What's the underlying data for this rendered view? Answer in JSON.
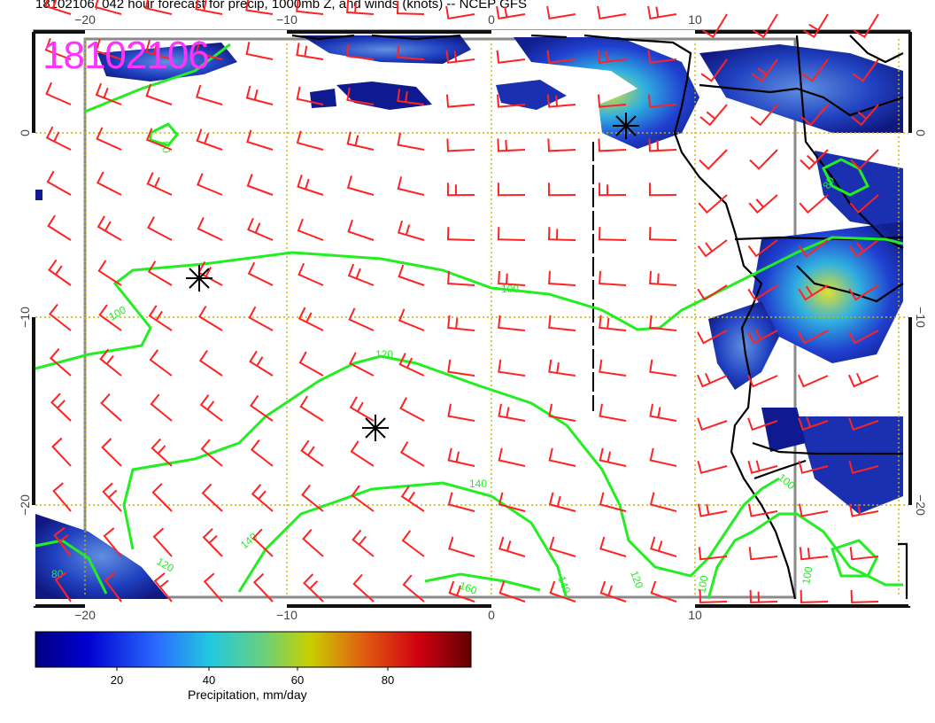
{
  "title": "18102106, 042 hour forecast for precip, 1000mb Z, and winds (knots) -- NCEP GFS",
  "stamp": "18102106",
  "axes": {
    "lon_ticks_top": [
      "−20",
      "−10",
      "0",
      "10"
    ],
    "lon_ticks_bottom": [
      "−20",
      "−10",
      "0",
      "10"
    ],
    "lat_ticks_left": [
      "0",
      "−10",
      "−20"
    ],
    "lat_ticks_right": [
      "0",
      "−10",
      "−20"
    ]
  },
  "contours": {
    "color": "#22ee22",
    "labels": [
      "80",
      "80",
      "100",
      "100",
      "120",
      "120",
      "120",
      "140",
      "140",
      "140",
      "160",
      "100",
      "100",
      "100",
      "80"
    ]
  },
  "colorbar": {
    "label": "Precipitation, mm/day",
    "ticks": [
      "20",
      "40",
      "60",
      "80"
    ]
  },
  "colors": {
    "wind_barbs": "#ff2222",
    "grid": "#c8b400",
    "stamp": "#ff33ff",
    "frame": "#888888"
  }
}
